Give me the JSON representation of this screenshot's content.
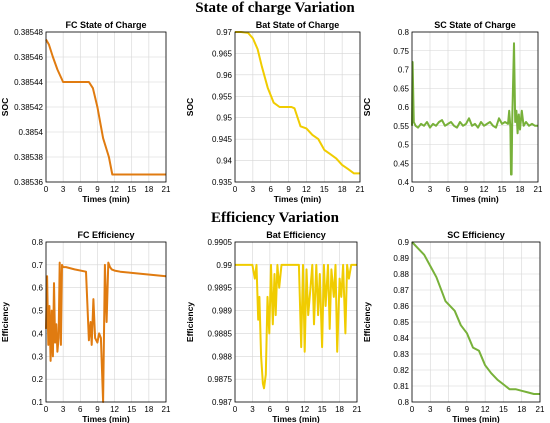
{
  "sections": {
    "top_title": "State of charge Variation",
    "bottom_title": "Efficiency Variation"
  },
  "chart_data": [
    {
      "type": "line",
      "title": "FC State of Charge",
      "xlabel": "Times (min)",
      "ylabel": "SOC",
      "color": "#e07b10",
      "xlim": [
        0,
        21
      ],
      "ylim": [
        0.38536,
        0.38548
      ],
      "xticks": [
        "0",
        "3",
        "6",
        "9",
        "12",
        "15",
        "18",
        "21"
      ],
      "yticks": [
        "0.38536",
        "0.38538",
        "0.3854",
        "0.38542",
        "0.38544",
        "0.38546",
        "0.38548"
      ],
      "x": [
        0,
        0.5,
        1.2,
        2.0,
        3.0,
        5.0,
        7.5,
        8.2,
        9.0,
        10.0,
        11.0,
        11.6,
        13,
        15,
        17,
        19,
        21
      ],
      "values": [
        0.385474,
        0.38547,
        0.38546,
        0.38545,
        0.38544,
        0.38544,
        0.38544,
        0.385435,
        0.38542,
        0.385395,
        0.38538,
        0.385366,
        0.385366,
        0.385366,
        0.385366,
        0.385366,
        0.385366
      ]
    },
    {
      "type": "line",
      "title": "Bat State of Charge",
      "xlabel": "Times (min)",
      "ylabel": "SOC",
      "color": "#f0cc00",
      "xlim": [
        0,
        21
      ],
      "ylim": [
        0.935,
        0.97
      ],
      "xticks": [
        "0",
        "3",
        "6",
        "9",
        "12",
        "15",
        "18",
        "21"
      ],
      "yticks": [
        "0.935",
        "0.94",
        "0.945",
        "0.95",
        "0.955",
        "0.96",
        "0.965",
        "0.97"
      ],
      "x": [
        0,
        1,
        2.2,
        3,
        3.8,
        4.5,
        5.5,
        6.5,
        7.5,
        8.5,
        9.5,
        10,
        11,
        12,
        13,
        14,
        15,
        16,
        17,
        18,
        19,
        20,
        21
      ],
      "values": [
        0.97,
        0.97,
        0.9698,
        0.9685,
        0.966,
        0.962,
        0.957,
        0.9535,
        0.9525,
        0.9525,
        0.9525,
        0.9522,
        0.948,
        0.9475,
        0.946,
        0.945,
        0.9425,
        0.9415,
        0.9405,
        0.939,
        0.938,
        0.937,
        0.937
      ]
    },
    {
      "type": "line",
      "title": "SC State of Charge",
      "xlabel": "Times (min)",
      "ylabel": "SOC",
      "color": "#78b13a",
      "xlim": [
        0,
        21
      ],
      "ylim": [
        0.4,
        0.8
      ],
      "xticks": [
        "0",
        "3",
        "6",
        "9",
        "12",
        "15",
        "18",
        "21"
      ],
      "yticks": [
        "0.4",
        "0.45",
        "0.5",
        "0.55",
        "0.6",
        "0.65",
        "0.7",
        "0.75",
        "0.8"
      ],
      "x": [
        0,
        0.1,
        0.3,
        0.6,
        1,
        1.5,
        2,
        2.5,
        3,
        3.5,
        4,
        4.5,
        5,
        5.5,
        6,
        6.5,
        7,
        7.5,
        8,
        8.5,
        9,
        9.5,
        10,
        10.5,
        11,
        11.5,
        12,
        12.5,
        13,
        13.5,
        14,
        14.5,
        15,
        15.5,
        16,
        16.2,
        16.4,
        16.5,
        16.6,
        16.7,
        17,
        17.2,
        17.4,
        17.6,
        17.8,
        18,
        18.3,
        18.6,
        19,
        19.5,
        20,
        20.5,
        21
      ],
      "values": [
        0.55,
        0.72,
        0.56,
        0.55,
        0.545,
        0.555,
        0.55,
        0.56,
        0.545,
        0.555,
        0.55,
        0.56,
        0.565,
        0.55,
        0.555,
        0.56,
        0.55,
        0.545,
        0.56,
        0.55,
        0.555,
        0.57,
        0.55,
        0.555,
        0.545,
        0.56,
        0.55,
        0.555,
        0.56,
        0.55,
        0.545,
        0.57,
        0.555,
        0.56,
        0.555,
        0.59,
        0.545,
        0.42,
        0.42,
        0.56,
        0.77,
        0.56,
        0.59,
        0.53,
        0.58,
        0.54,
        0.59,
        0.55,
        0.56,
        0.55,
        0.555,
        0.55,
        0.55
      ]
    },
    {
      "type": "line",
      "title": "FC Efficiency",
      "xlabel": "Times (min)",
      "ylabel": "Efficiency",
      "color": "#e07b10",
      "xlim": [
        0,
        21
      ],
      "ylim": [
        0.1,
        0.8
      ],
      "xticks": [
        "0",
        "3",
        "6",
        "9",
        "12",
        "15",
        "18",
        "21"
      ],
      "yticks": [
        "0.1",
        "0.2",
        "0.3",
        "0.4",
        "0.5",
        "0.6",
        "0.7",
        "0.8"
      ],
      "x": [
        0,
        0.2,
        0.4,
        0.6,
        0.8,
        1.0,
        1.2,
        1.4,
        1.6,
        1.8,
        2.0,
        2.2,
        2.4,
        2.6,
        2.8,
        3.0,
        3.5,
        5,
        7,
        7.5,
        7.8,
        8.0,
        8.3,
        8.6,
        9.0,
        9.3,
        9.6,
        10.0,
        10.3,
        10.6,
        10.9,
        11.2,
        11.5,
        12,
        13,
        15,
        17,
        19,
        21
      ],
      "values": [
        0.42,
        0.65,
        0.35,
        0.52,
        0.28,
        0.5,
        0.3,
        0.62,
        0.36,
        0.44,
        0.32,
        0.38,
        0.71,
        0.35,
        0.7,
        0.69,
        0.69,
        0.68,
        0.67,
        0.37,
        0.45,
        0.35,
        0.55,
        0.38,
        0.36,
        0.4,
        0.38,
        0.1,
        0.7,
        0.45,
        0.71,
        0.69,
        0.68,
        0.675,
        0.67,
        0.665,
        0.66,
        0.655,
        0.65
      ]
    },
    {
      "type": "line",
      "title": "Bat Efficiency",
      "xlabel": "Times (min)",
      "ylabel": "Efficiency",
      "color": "#f0cc00",
      "xlim": [
        0,
        21
      ],
      "ylim": [
        0.987,
        0.9905
      ],
      "xticks": [
        "0",
        "3",
        "6",
        "9",
        "12",
        "15",
        "18",
        "21"
      ],
      "yticks": [
        "0.987",
        "0.9875",
        "0.988",
        "0.9885",
        "0.989",
        "0.9895",
        "0.99",
        "0.9905"
      ],
      "x": [
        0,
        1,
        2,
        3,
        3.4,
        3.7,
        4.0,
        4.2,
        4.5,
        4.8,
        5.0,
        5.3,
        5.6,
        5.9,
        6.2,
        6.5,
        6.8,
        7.0,
        7.3,
        7.6,
        8.0,
        9,
        11,
        11.4,
        11.7,
        12.0,
        12.3,
        12.6,
        13.0,
        13.3,
        13.6,
        14.0,
        14.3,
        14.6,
        15.0,
        15.3,
        15.6,
        16.0,
        16.3,
        16.6,
        17.0,
        17.3,
        17.6,
        18.0,
        18.3,
        18.6,
        19.0,
        19.3,
        19.6,
        20,
        21
      ],
      "values": [
        0.99,
        0.99,
        0.99,
        0.99,
        0.9897,
        0.99,
        0.9888,
        0.9893,
        0.988,
        0.9874,
        0.9873,
        0.9876,
        0.9893,
        0.9885,
        0.99,
        0.9887,
        0.9898,
        0.9889,
        0.99,
        0.9895,
        0.99,
        0.99,
        0.99,
        0.9882,
        0.99,
        0.9881,
        0.9899,
        0.9889,
        0.9895,
        0.99,
        0.9887,
        0.99,
        0.9889,
        0.9898,
        0.9882,
        0.99,
        0.9891,
        0.99,
        0.9886,
        0.9899,
        0.9893,
        0.99,
        0.9881,
        0.9897,
        0.9893,
        0.99,
        0.9885,
        0.99,
        0.9897,
        0.99,
        0.99
      ]
    },
    {
      "type": "line",
      "title": "SC Efficiency",
      "xlabel": "Times (min)",
      "ylabel": "Efficiency",
      "color": "#78b13a",
      "xlim": [
        0,
        21
      ],
      "ylim": [
        0.8,
        0.9
      ],
      "xticks": [
        "0",
        "3",
        "6",
        "9",
        "12",
        "15",
        "18",
        "21"
      ],
      "yticks": [
        "0.8",
        "0.81",
        "0.82",
        "0.83",
        "0.84",
        "0.85",
        "0.86",
        "0.87",
        "0.88",
        "0.89",
        "0.9"
      ],
      "x": [
        0,
        1,
        2,
        3,
        4,
        5,
        5.5,
        6,
        7,
        8,
        9,
        10,
        11,
        12,
        13,
        14,
        15,
        16,
        17,
        18,
        19,
        20,
        21
      ],
      "values": [
        0.9,
        0.896,
        0.892,
        0.885,
        0.878,
        0.868,
        0.863,
        0.861,
        0.857,
        0.848,
        0.843,
        0.834,
        0.832,
        0.823,
        0.818,
        0.814,
        0.811,
        0.808,
        0.808,
        0.807,
        0.806,
        0.805,
        0.805
      ]
    }
  ]
}
